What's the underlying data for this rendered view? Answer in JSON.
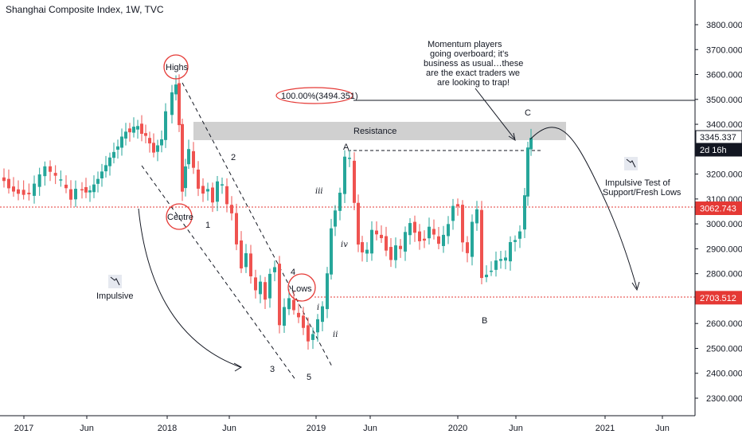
{
  "header": {
    "title": "Shanghai Composite Index, 1W, TVC"
  },
  "chart_data": {
    "type": "candlestick",
    "title": "Shanghai Composite Index, 1W, TVC",
    "yaxis": {
      "ticks": [
        "3800.000",
        "3700.000",
        "3600.000",
        "3500.000",
        "3400.000",
        "3300.000",
        "3200.000",
        "3100.000",
        "3000.000",
        "2900.000",
        "2800.000",
        "2700.000",
        "2600.000",
        "2500.000",
        "2400.000",
        "2300.000"
      ],
      "range": [
        2240,
        3900
      ]
    },
    "xaxis": {
      "ticks": [
        "2017",
        "Jun",
        "2018",
        "Jun",
        "2019",
        "Jun",
        "2020",
        "Jun",
        "2021",
        "Jun"
      ]
    },
    "price_tags": [
      {
        "label": "3345.337",
        "value": 3345.337,
        "color": "#ffffff",
        "text_color": "#131722"
      },
      {
        "label": "2d 16h",
        "value": 3280,
        "color": "#131722",
        "text_color": "#ffffff"
      },
      {
        "label": "3062.743",
        "value": 3062.743,
        "color": "#e53935",
        "text_color": "#ffffff"
      },
      {
        "label": "2703.512",
        "value": 2703.512,
        "color": "#e53935",
        "text_color": "#ffffff"
      }
    ],
    "levels": [
      {
        "value": 3062.743,
        "style": "dotted",
        "color": "#e53935"
      },
      {
        "value": 2703.512,
        "style": "dotted",
        "color": "#e53935"
      },
      {
        "value": 3494.351,
        "style": "solid",
        "color": "#131722"
      }
    ],
    "resistance_zone": {
      "label": "Resistance",
      "low": 3330,
      "high": 3405
    },
    "fib_label": "100.00%(3494.351)",
    "annotations": {
      "highs": "Highs",
      "centre": "Centre",
      "lows": "Lows",
      "impulsive": "Impulsive",
      "momentum": [
        "Momentum players",
        "going overboard; it's",
        "business as usual…these",
        "are the exact traders we",
        "are looking to trap!"
      ],
      "impulsive_test": [
        "Impulsive Test of",
        "Support/Fresh Lows"
      ]
    },
    "wave_labels": [
      "1",
      "2",
      "3",
      "4",
      "5",
      "A",
      "B",
      "C",
      "i",
      "ii",
      "iii",
      "iv"
    ]
  },
  "colors": {
    "up": "#26a69a",
    "down": "#ef5350",
    "level": "#e53935",
    "text": "#131722"
  }
}
